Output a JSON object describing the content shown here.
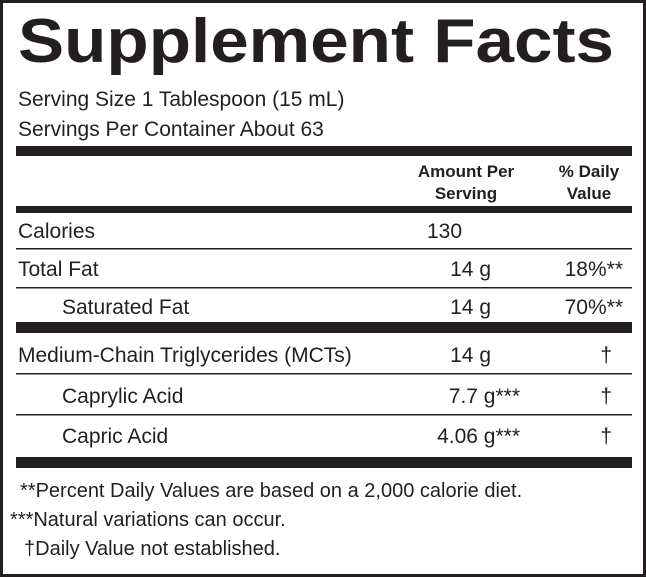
{
  "title": "Supplement Facts",
  "serving_size": "Serving Size 1 Tablespoon (15 mL)",
  "servings_per_container": "Servings Per Container About 63",
  "table": {
    "header": {
      "amount": [
        "Amount Per",
        "Serving"
      ],
      "daily_value": [
        "% Daily",
        "Value"
      ]
    },
    "rows": [
      {
        "name": "Calories",
        "amount": "130"
      },
      {
        "name": "Total Fat",
        "amount": "14 g",
        "daily_value": "18%**"
      },
      {
        "name": "Saturated Fat",
        "amount": "14 g",
        "daily_value": "70%**"
      },
      {
        "name": "Medium-Chain Triglycerides (MCTs)",
        "amount": "14 g",
        "daily_value": "†"
      },
      {
        "name": "Caprylic Acid",
        "amount": "7.7 g***",
        "daily_value": "†"
      },
      {
        "name": "Capric Acid",
        "amount": "4.06 g***",
        "daily_value": "†"
      }
    ]
  },
  "footnotes": [
    "**Percent Daily Values are based on a 2,000 calorie diet.",
    "***Natural variations can occur.",
    "†Daily Value not established."
  ]
}
